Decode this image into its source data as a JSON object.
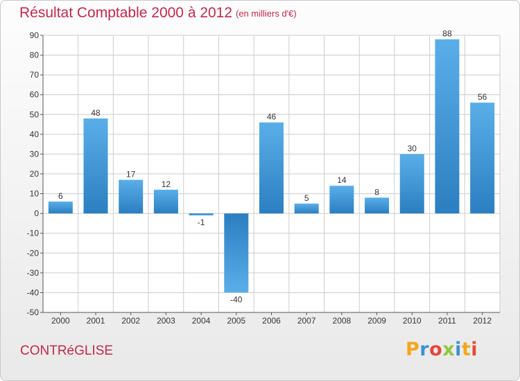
{
  "chart_data": {
    "type": "bar",
    "title": "Résultat Comptable 2000 à 2012",
    "subtitle": "(en milliers d'€)",
    "categories": [
      "2000",
      "2001",
      "2002",
      "2003",
      "2004",
      "2005",
      "2006",
      "2007",
      "2008",
      "2009",
      "2010",
      "2011",
      "2012"
    ],
    "values": [
      6,
      48,
      17,
      12,
      -1,
      -40,
      46,
      5,
      14,
      8,
      30,
      88,
      56
    ],
    "ylim": [
      -50,
      90
    ],
    "yticks": [
      -50,
      -40,
      -30,
      -20,
      -10,
      0,
      10,
      20,
      30,
      40,
      50,
      60,
      70,
      80,
      90
    ],
    "xlabel": "",
    "ylabel": "",
    "grid": true,
    "colors": {
      "bar_light": "#5aaee8",
      "bar_dark": "#2b7fc1",
      "grid": "#cccccc"
    }
  },
  "footer": {
    "commune": "CONTRéGLISE",
    "logo_text": "Proxiti"
  },
  "logo_colors": [
    "#f2a71b",
    "#3d8fd4",
    "#e2493a",
    "#8fc73e",
    "#3d8fd4",
    "#f2a71b",
    "#e2493a"
  ]
}
